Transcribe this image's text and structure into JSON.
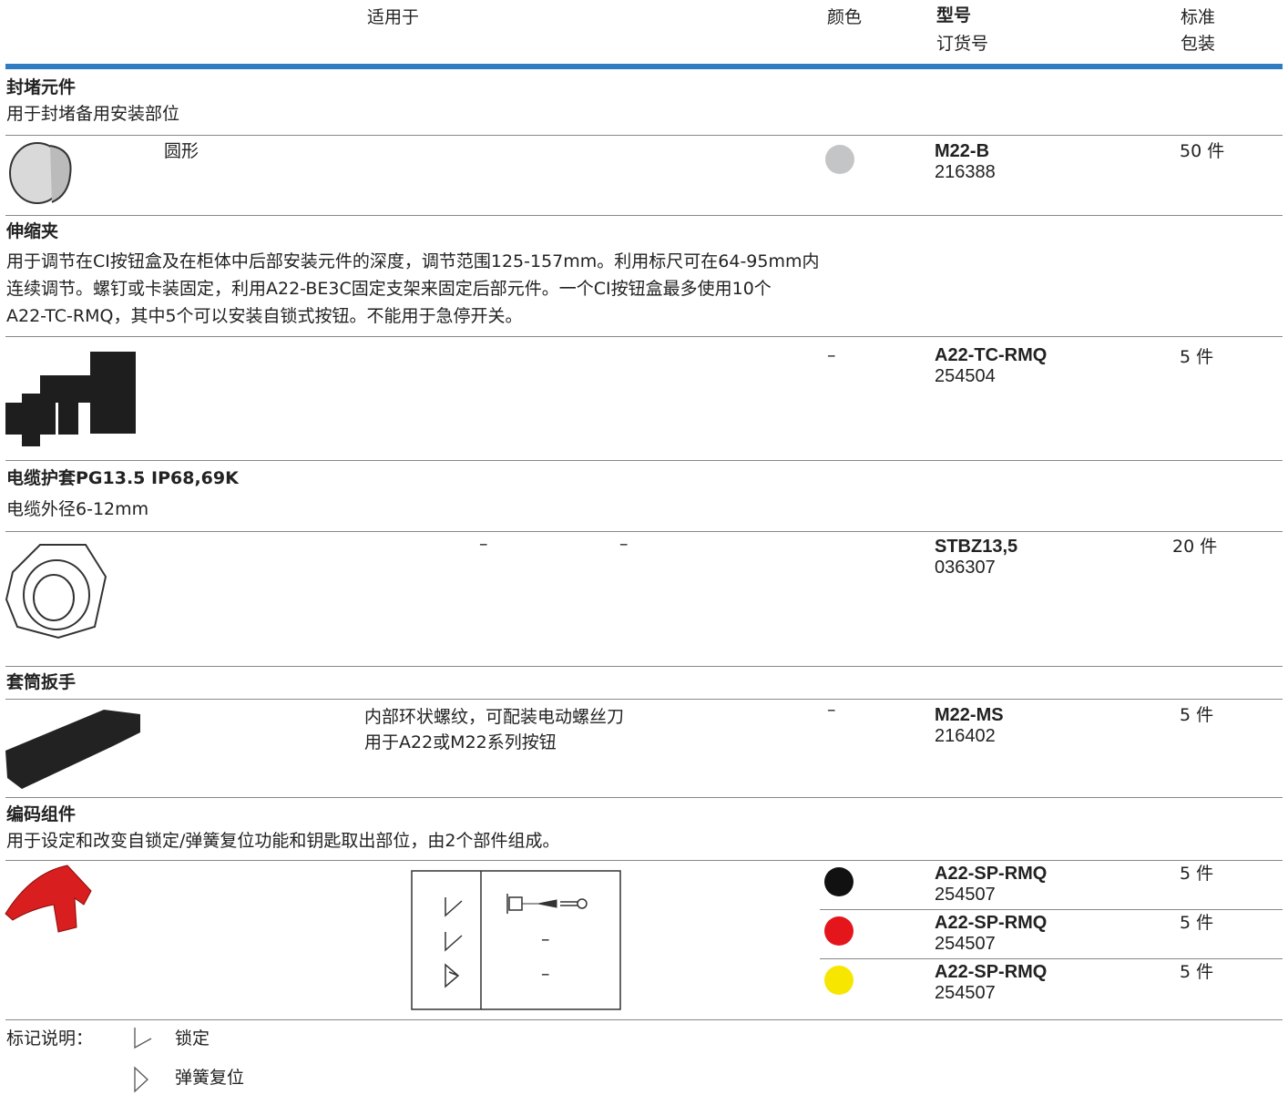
{
  "header": {
    "applies": "适用于",
    "color": "颜色",
    "model": "型号",
    "order_no": "订货号",
    "pack_1": "标准",
    "pack_2": "包装"
  },
  "sections": [
    {
      "title": "封堵元件",
      "description": [
        "用于封堵备用安装部位"
      ],
      "items": [
        {
          "applies": [
            "圆形"
          ],
          "color": "#c4c5c7",
          "model": "M22-B",
          "order_no": "216388",
          "pack": "50 件"
        }
      ]
    },
    {
      "title": "伸缩夹",
      "description": [
        "用于调节在CI按钮盒及在柜体中后部安装元件的深度，调节范围125-157mm。利用标尺可在64-95mm内",
        "连续调节。螺钉或卡装固定，利用A22-BE3C固定支架来固定后部元件。一个CI按钮盒最多使用10个",
        "A22-TC-RMQ，其中5个可以安装自锁式按钮。不能用于急停开关。"
      ],
      "items": [
        {
          "color_text": "–",
          "model": "A22-TC-RMQ",
          "order_no": "254504",
          "pack": "5 件"
        }
      ]
    },
    {
      "title": "电缆护套PG13.5 IP68,69K",
      "description": [
        "电缆外径6-12mm"
      ],
      "items": [
        {
          "applies": [
            "–",
            "–"
          ],
          "model": "STBZ13,5",
          "order_no": "036307",
          "pack": "20 件"
        }
      ]
    },
    {
      "title": "套筒扳手",
      "items": [
        {
          "applies": [
            "内部环状螺纹，可配装电动螺丝刀",
            "用于A22或M22系列按钮"
          ],
          "color_text": "–",
          "model": "M22-MS",
          "order_no": "216402",
          "pack": "5 件"
        }
      ]
    },
    {
      "title": "编码组件",
      "description": [
        "用于设定和改变自锁定/弹簧复位功能和钥匙取出部位，由2个部件组成。"
      ],
      "items": [
        {
          "color": "#111111",
          "model": "A22-SP-RMQ",
          "order_no": "254507",
          "pack": "5 件"
        },
        {
          "color": "#e5151c",
          "model": "A22-SP-RMQ",
          "order_no": "254507",
          "pack": "5 件"
        },
        {
          "color": "#f7e600",
          "model": "A22-SP-RMQ",
          "order_no": "254507",
          "pack": "5 件"
        }
      ]
    }
  ],
  "diagram": {
    "cells": [
      "–",
      "–"
    ]
  },
  "legend": {
    "label": "标记说明：",
    "items": [
      "锁定",
      "弹簧复位"
    ]
  }
}
